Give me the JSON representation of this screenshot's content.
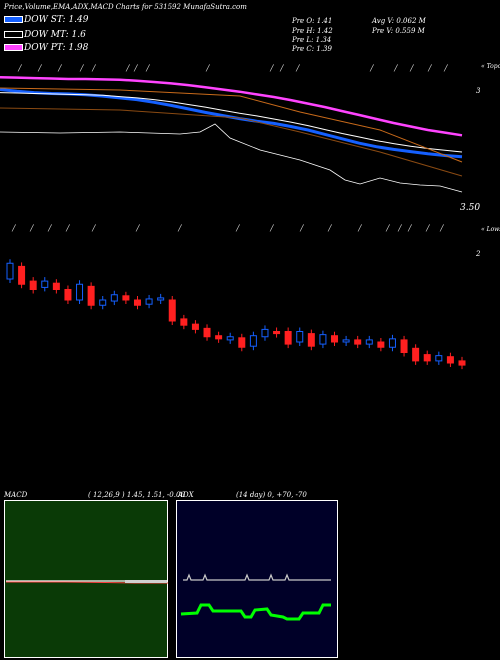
{
  "header": {
    "title": "Price,Volume,EMA,ADX,MACD Charts for 531592  MunafaSutra.com"
  },
  "legend": [
    {
      "label": "DOW ST: 1.49",
      "color": "#1560ff"
    },
    {
      "label": "DOW MT: 1.6",
      "color": "#ffffff"
    },
    {
      "label": "DOW PT: 1.98",
      "color": "#ff44ff"
    }
  ],
  "prev": {
    "open": "Pre   O: 1.41",
    "high": "Pre   H: 1.42",
    "low": "Pre   L: 1.34",
    "close": "Pre   C: 1.39",
    "avg_vol": "Avg V: 0.062  M",
    "prev_vol": "Pre   V: 0.559  M"
  },
  "price_axis": {
    "top_label": "3",
    "bottom_label": "3.50",
    "topo": "« Topo",
    "lows": "« Lows",
    "vol_label": "2"
  },
  "macd": {
    "label": "MACD",
    "params": "( 12,26,9 ) 1.45,  1.51, -0.06"
  },
  "adx": {
    "label": "ADX",
    "params": "(14  day) 0,  +70,  -70"
  },
  "colors": {
    "ema_short": "#1560ff",
    "ema_mid": "#ffffff",
    "ema_long": "#ff44ff",
    "orange": "#c86a1a",
    "up": "#1560ff",
    "down": "#ff2020",
    "macd_bg": "#0a3a06",
    "adx_bg": "#000028",
    "adx_line": "#00ff00"
  },
  "chart_data": {
    "type": "line",
    "series": [
      {
        "name": "DOW ST: 1.49",
        "values": [
          3.02,
          2.98,
          2.95,
          2.93,
          2.92,
          2.9,
          2.87,
          2.83,
          2.79,
          2.73,
          2.66,
          2.58,
          2.5,
          2.43,
          2.36,
          2.3,
          2.25,
          2.18,
          2.1,
          2.0,
          1.9,
          1.8,
          1.72,
          1.66,
          1.61,
          1.56,
          1.52,
          1.49
        ]
      },
      {
        "name": "DOW MT: 1.6",
        "values": [
          2.95,
          2.94,
          2.93,
          2.92,
          2.91,
          2.9,
          2.89,
          2.86,
          2.83,
          2.79,
          2.74,
          2.68,
          2.62,
          2.55,
          2.48,
          2.42,
          2.35,
          2.28,
          2.2,
          2.11,
          2.02,
          1.94,
          1.86,
          1.79,
          1.73,
          1.68,
          1.64,
          1.6
        ]
      },
      {
        "name": "DOW PT: 1.98",
        "values": [
          3.3,
          3.29,
          3.28,
          3.27,
          3.26,
          3.26,
          3.25,
          3.24,
          3.22,
          3.19,
          3.16,
          3.12,
          3.07,
          3.02,
          2.97,
          2.91,
          2.85,
          2.78,
          2.7,
          2.62,
          2.53,
          2.44,
          2.35,
          2.26,
          2.18,
          2.1,
          2.04,
          1.98
        ]
      }
    ],
    "candles": [
      [
        2.4,
        2.55
      ],
      [
        2.52,
        2.35
      ],
      [
        2.38,
        2.3
      ],
      [
        2.32,
        2.38
      ],
      [
        2.36,
        2.3
      ],
      [
        2.3,
        2.2
      ],
      [
        2.2,
        2.35
      ],
      [
        2.33,
        2.15
      ],
      [
        2.15,
        2.2
      ],
      [
        2.19,
        2.25
      ],
      [
        2.24,
        2.2
      ],
      [
        2.2,
        2.15
      ],
      [
        2.16,
        2.21
      ],
      [
        2.2,
        2.22
      ],
      [
        2.2,
        2.0
      ],
      [
        2.02,
        1.96
      ],
      [
        1.97,
        1.92
      ],
      [
        1.93,
        1.85
      ],
      [
        1.86,
        1.83
      ],
      [
        1.82,
        1.85
      ],
      [
        1.84,
        1.75
      ],
      [
        1.76,
        1.86
      ],
      [
        1.85,
        1.92
      ],
      [
        1.9,
        1.88
      ],
      [
        1.9,
        1.78
      ],
      [
        1.8,
        1.9
      ],
      [
        1.88,
        1.76
      ],
      [
        1.78,
        1.87
      ],
      [
        1.86,
        1.8
      ],
      [
        1.8,
        1.82
      ],
      [
        1.82,
        1.78
      ],
      [
        1.78,
        1.82
      ],
      [
        1.8,
        1.75
      ],
      [
        1.75,
        1.83
      ],
      [
        1.82,
        1.7
      ],
      [
        1.74,
        1.62
      ],
      [
        1.68,
        1.62
      ],
      [
        1.62,
        1.67
      ],
      [
        1.66,
        1.6
      ],
      [
        1.62,
        1.58
      ]
    ]
  }
}
